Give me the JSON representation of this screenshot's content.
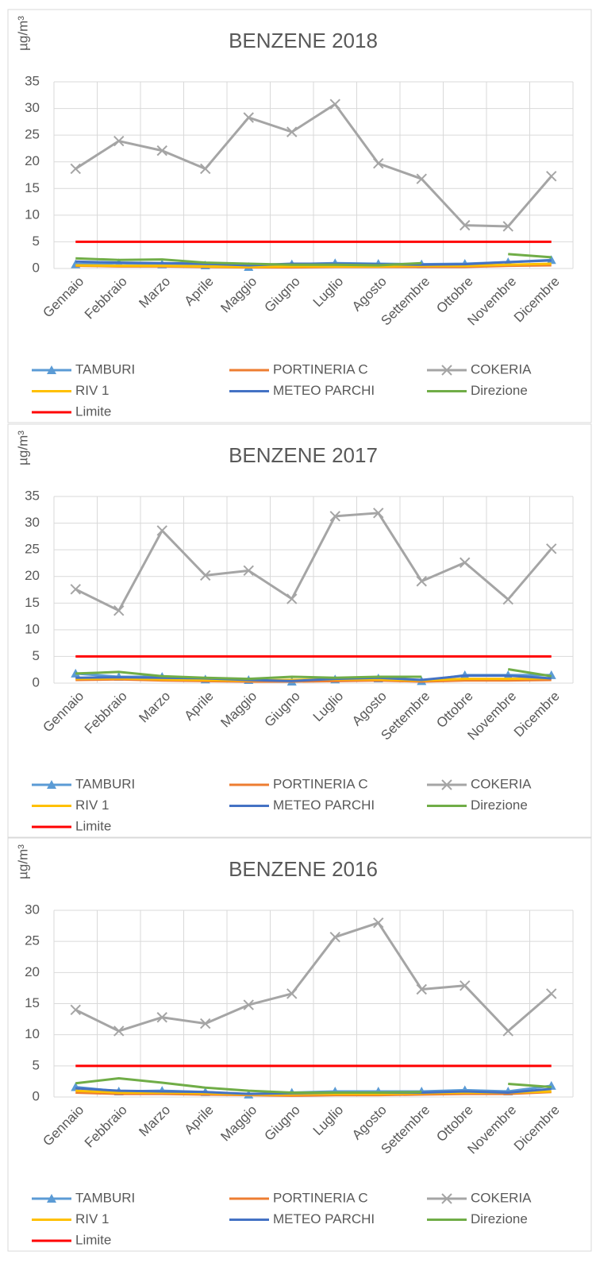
{
  "chart_data": [
    {
      "type": "line",
      "title": "BENZENE 2018",
      "y_label": "µg/m³",
      "categories": [
        "Gennaio",
        "Febbraio",
        "Marzo",
        "Aprile",
        "Maggio",
        "Giugno",
        "Luglio",
        "Agosto",
        "Settembre",
        "Ottobre",
        "Novembre",
        "Dicembre"
      ],
      "ylim": [
        0,
        35
      ],
      "yticks": [
        0,
        5,
        10,
        15,
        20,
        25,
        30,
        35
      ],
      "grid": true,
      "legend": "bottom",
      "series": [
        {
          "name": "TAMBURI",
          "color": "#5b9bd5",
          "marker": "triangle",
          "values": [
            0.8,
            1.0,
            0.8,
            0.6,
            0.3,
            0.8,
            1.0,
            0.9,
            0.8,
            0.9,
            1.2,
            1.6
          ]
        },
        {
          "name": "PORTINERIA C",
          "color": "#ed7d31",
          "values": [
            0.5,
            0.4,
            0.4,
            0.3,
            0.2,
            0.2,
            0.3,
            0.3,
            0.3,
            0.3,
            0.5,
            0.6
          ]
        },
        {
          "name": "COKERIA",
          "color": "#a5a5a5",
          "marker": "x",
          "values": [
            18.7,
            23.9,
            22.1,
            18.7,
            28.3,
            25.6,
            30.8,
            19.7,
            16.8,
            8.1,
            7.9,
            17.3
          ]
        },
        {
          "name": "RIV 1",
          "color": "#ffc000",
          "values": [
            0.6,
            0.5,
            0.5,
            0.4,
            0.3,
            0.4,
            0.4,
            0.4,
            0.5,
            0.5,
            0.7,
            0.9
          ]
        },
        {
          "name": "METEO PARCHI",
          "color": "#4472c4",
          "values": [
            1.3,
            1.1,
            1.0,
            0.9,
            0.6,
            0.9,
            0.9,
            0.8,
            0.7,
            0.8,
            1.2,
            1.5
          ]
        },
        {
          "name": "Direzione",
          "color": "#70ad47",
          "values": [
            1.9,
            1.6,
            1.7,
            1.1,
            0.9,
            0.7,
            0.7,
            0.6,
            1.0,
            null,
            2.7,
            2.1
          ]
        },
        {
          "name": "Limite",
          "color": "#ff0000",
          "values": [
            5,
            5,
            5,
            5,
            5,
            5,
            5,
            5,
            5,
            5,
            5,
            5
          ]
        }
      ]
    },
    {
      "type": "line",
      "title": "BENZENE 2017",
      "y_label": "µg/m³",
      "categories": [
        "Gennaio",
        "Febbraio",
        "Marzo",
        "Aprile",
        "Maggio",
        "Giugno",
        "Luglio",
        "Agosto",
        "Settembre",
        "Ottobre",
        "Novembre",
        "Dicembre"
      ],
      "ylim": [
        0,
        35
      ],
      "yticks": [
        0,
        5,
        10,
        15,
        20,
        25,
        30,
        35
      ],
      "grid": true,
      "legend": "bottom",
      "series": [
        {
          "name": "TAMBURI",
          "color": "#5b9bd5",
          "marker": "triangle",
          "values": [
            1.8,
            1.2,
            1.2,
            0.7,
            0.6,
            0.3,
            0.7,
            0.9,
            0.4,
            1.5,
            1.5,
            1.5
          ]
        },
        {
          "name": "PORTINERIA C",
          "color": "#ed7d31",
          "values": [
            0.6,
            0.7,
            0.5,
            0.4,
            0.3,
            0.3,
            0.4,
            0.5,
            0.3,
            0.5,
            0.5,
            0.6
          ]
        },
        {
          "name": "COKERIA",
          "color": "#a5a5a5",
          "marker": "x",
          "values": [
            17.6,
            13.6,
            28.6,
            20.2,
            21.1,
            15.8,
            31.3,
            31.9,
            19.1,
            22.6,
            15.7,
            25.2
          ]
        },
        {
          "name": "RIV 1",
          "color": "#ffc000",
          "values": [
            0.8,
            0.9,
            0.7,
            0.6,
            0.5,
            0.6,
            0.7,
            0.7,
            0.5,
            0.8,
            0.8,
            0.9
          ]
        },
        {
          "name": "METEO PARCHI",
          "color": "#4472c4",
          "values": [
            1.0,
            1.1,
            1.0,
            0.9,
            0.6,
            0.4,
            0.8,
            1.0,
            0.6,
            1.4,
            1.4,
            0.9
          ]
        },
        {
          "name": "Direzione",
          "color": "#70ad47",
          "values": [
            1.8,
            2.1,
            1.3,
            1.0,
            0.8,
            1.2,
            1.0,
            1.2,
            1.2,
            null,
            2.6,
            1.3
          ]
        },
        {
          "name": "Limite",
          "color": "#ff0000",
          "values": [
            5,
            5,
            5,
            5,
            5,
            5,
            5,
            5,
            5,
            5,
            5,
            5
          ]
        }
      ]
    },
    {
      "type": "line",
      "title": "BENZENE 2016",
      "y_label": "µg/m³",
      "categories": [
        "Gennaio",
        "Febbraio",
        "Marzo",
        "Aprile",
        "Maggio",
        "Giugno",
        "Luglio",
        "Agosto",
        "Settembre",
        "Ottobre",
        "Novembre",
        "Dicembre"
      ],
      "ylim": [
        0,
        30
      ],
      "yticks": [
        0,
        5,
        10,
        15,
        20,
        25,
        30
      ],
      "grid": true,
      "legend": "bottom",
      "series": [
        {
          "name": "TAMBURI",
          "color": "#5b9bd5",
          "marker": "triangle",
          "values": [
            1.6,
            0.9,
            1.0,
            0.8,
            0.4,
            0.7,
            0.9,
            0.9,
            0.9,
            1.1,
            0.9,
            1.8
          ]
        },
        {
          "name": "PORTINERIA C",
          "color": "#ed7d31",
          "values": [
            0.7,
            0.5,
            0.5,
            0.4,
            0.3,
            0.2,
            0.3,
            0.3,
            0.4,
            0.5,
            0.5,
            0.8
          ]
        },
        {
          "name": "COKERIA",
          "color": "#a5a5a5",
          "marker": "x",
          "values": [
            14.0,
            10.6,
            12.8,
            11.8,
            14.8,
            16.6,
            25.7,
            28.0,
            17.3,
            17.9,
            10.6,
            16.6
          ]
        },
        {
          "name": "RIV 1",
          "color": "#ffc000",
          "values": [
            1.0,
            0.7,
            0.7,
            0.6,
            0.4,
            0.4,
            0.5,
            0.5,
            0.6,
            0.7,
            0.7,
            0.9
          ]
        },
        {
          "name": "METEO PARCHI",
          "color": "#4472c4",
          "values": [
            1.4,
            1.0,
            0.9,
            0.8,
            0.5,
            0.6,
            0.7,
            0.7,
            0.7,
            0.9,
            0.7,
            1.3
          ]
        },
        {
          "name": "Direzione",
          "color": "#70ad47",
          "values": [
            2.2,
            3.0,
            2.3,
            1.5,
            1.0,
            0.7,
            0.7,
            0.7,
            0.8,
            null,
            2.1,
            1.6
          ]
        },
        {
          "name": "Limite",
          "color": "#ff0000",
          "values": [
            5,
            5,
            5,
            5,
            5,
            5,
            5,
            5,
            5,
            5,
            5,
            5
          ]
        }
      ]
    }
  ]
}
